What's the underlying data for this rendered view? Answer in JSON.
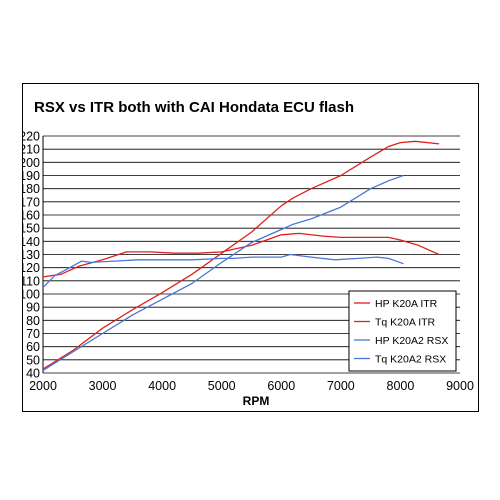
{
  "chart_data": {
    "type": "line",
    "title": "RSX vs ITR both with CAI Hondata ECU flash",
    "xlabel": "RPM",
    "ylabel": "",
    "xlim": [
      2000,
      9000
    ],
    "ylim": [
      40,
      220
    ],
    "xticks": [
      2000,
      3000,
      4000,
      5000,
      6000,
      7000,
      8000,
      9000
    ],
    "yticks": [
      40,
      50,
      60,
      70,
      80,
      90,
      100,
      110,
      120,
      130,
      140,
      150,
      160,
      170,
      180,
      190,
      200,
      210,
      220
    ],
    "grid": "horizontal",
    "legend_position": "bottom-right",
    "series": [
      {
        "name": "HP K20A ITR",
        "color": "#e0201c",
        "x": [
          2000,
          2500,
          3000,
          3500,
          4000,
          4500,
          5000,
          5500,
          6000,
          6200,
          6500,
          7000,
          7500,
          7800,
          8000,
          8250,
          8650
        ],
        "y": [
          43,
          57,
          74,
          88,
          101,
          115,
          131,
          147,
          167,
          173,
          180,
          190,
          204,
          212,
          215,
          216,
          214
        ]
      },
      {
        "name": "Tq K20A ITR",
        "color": "#e0201c",
        "x": [
          2000,
          2300,
          2600,
          3000,
          3400,
          3800,
          4200,
          4600,
          5000,
          5500,
          6000,
          6300,
          6700,
          7000,
          7500,
          7800,
          8000,
          8300,
          8650
        ],
        "y": [
          113,
          115,
          121,
          126,
          132,
          132,
          131,
          131,
          132,
          137,
          145,
          146,
          144,
          143,
          143,
          143,
          141,
          137,
          130
        ]
      },
      {
        "name": "HP K20A2 RSX",
        "color": "#4a78d8",
        "x": [
          2000,
          2500,
          3000,
          3500,
          4000,
          4500,
          5000,
          5500,
          6000,
          6200,
          6500,
          7000,
          7500,
          7800,
          8050
        ],
        "y": [
          42,
          56,
          70,
          84,
          96,
          108,
          124,
          139,
          149,
          153,
          157,
          166,
          180,
          186,
          190
        ]
      },
      {
        "name": "Tq K20A2 RSX",
        "color": "#4a78d8",
        "x": [
          2000,
          2200,
          2450,
          2650,
          2800,
          3200,
          3600,
          4000,
          4500,
          5000,
          5200,
          5500,
          6000,
          6150,
          6500,
          6900,
          7300,
          7600,
          7800,
          8050
        ],
        "y": [
          105,
          114,
          120,
          125,
          124,
          125,
          126,
          126,
          126,
          127,
          127,
          128,
          128,
          130,
          128,
          126,
          127,
          128,
          127,
          123
        ]
      }
    ]
  }
}
